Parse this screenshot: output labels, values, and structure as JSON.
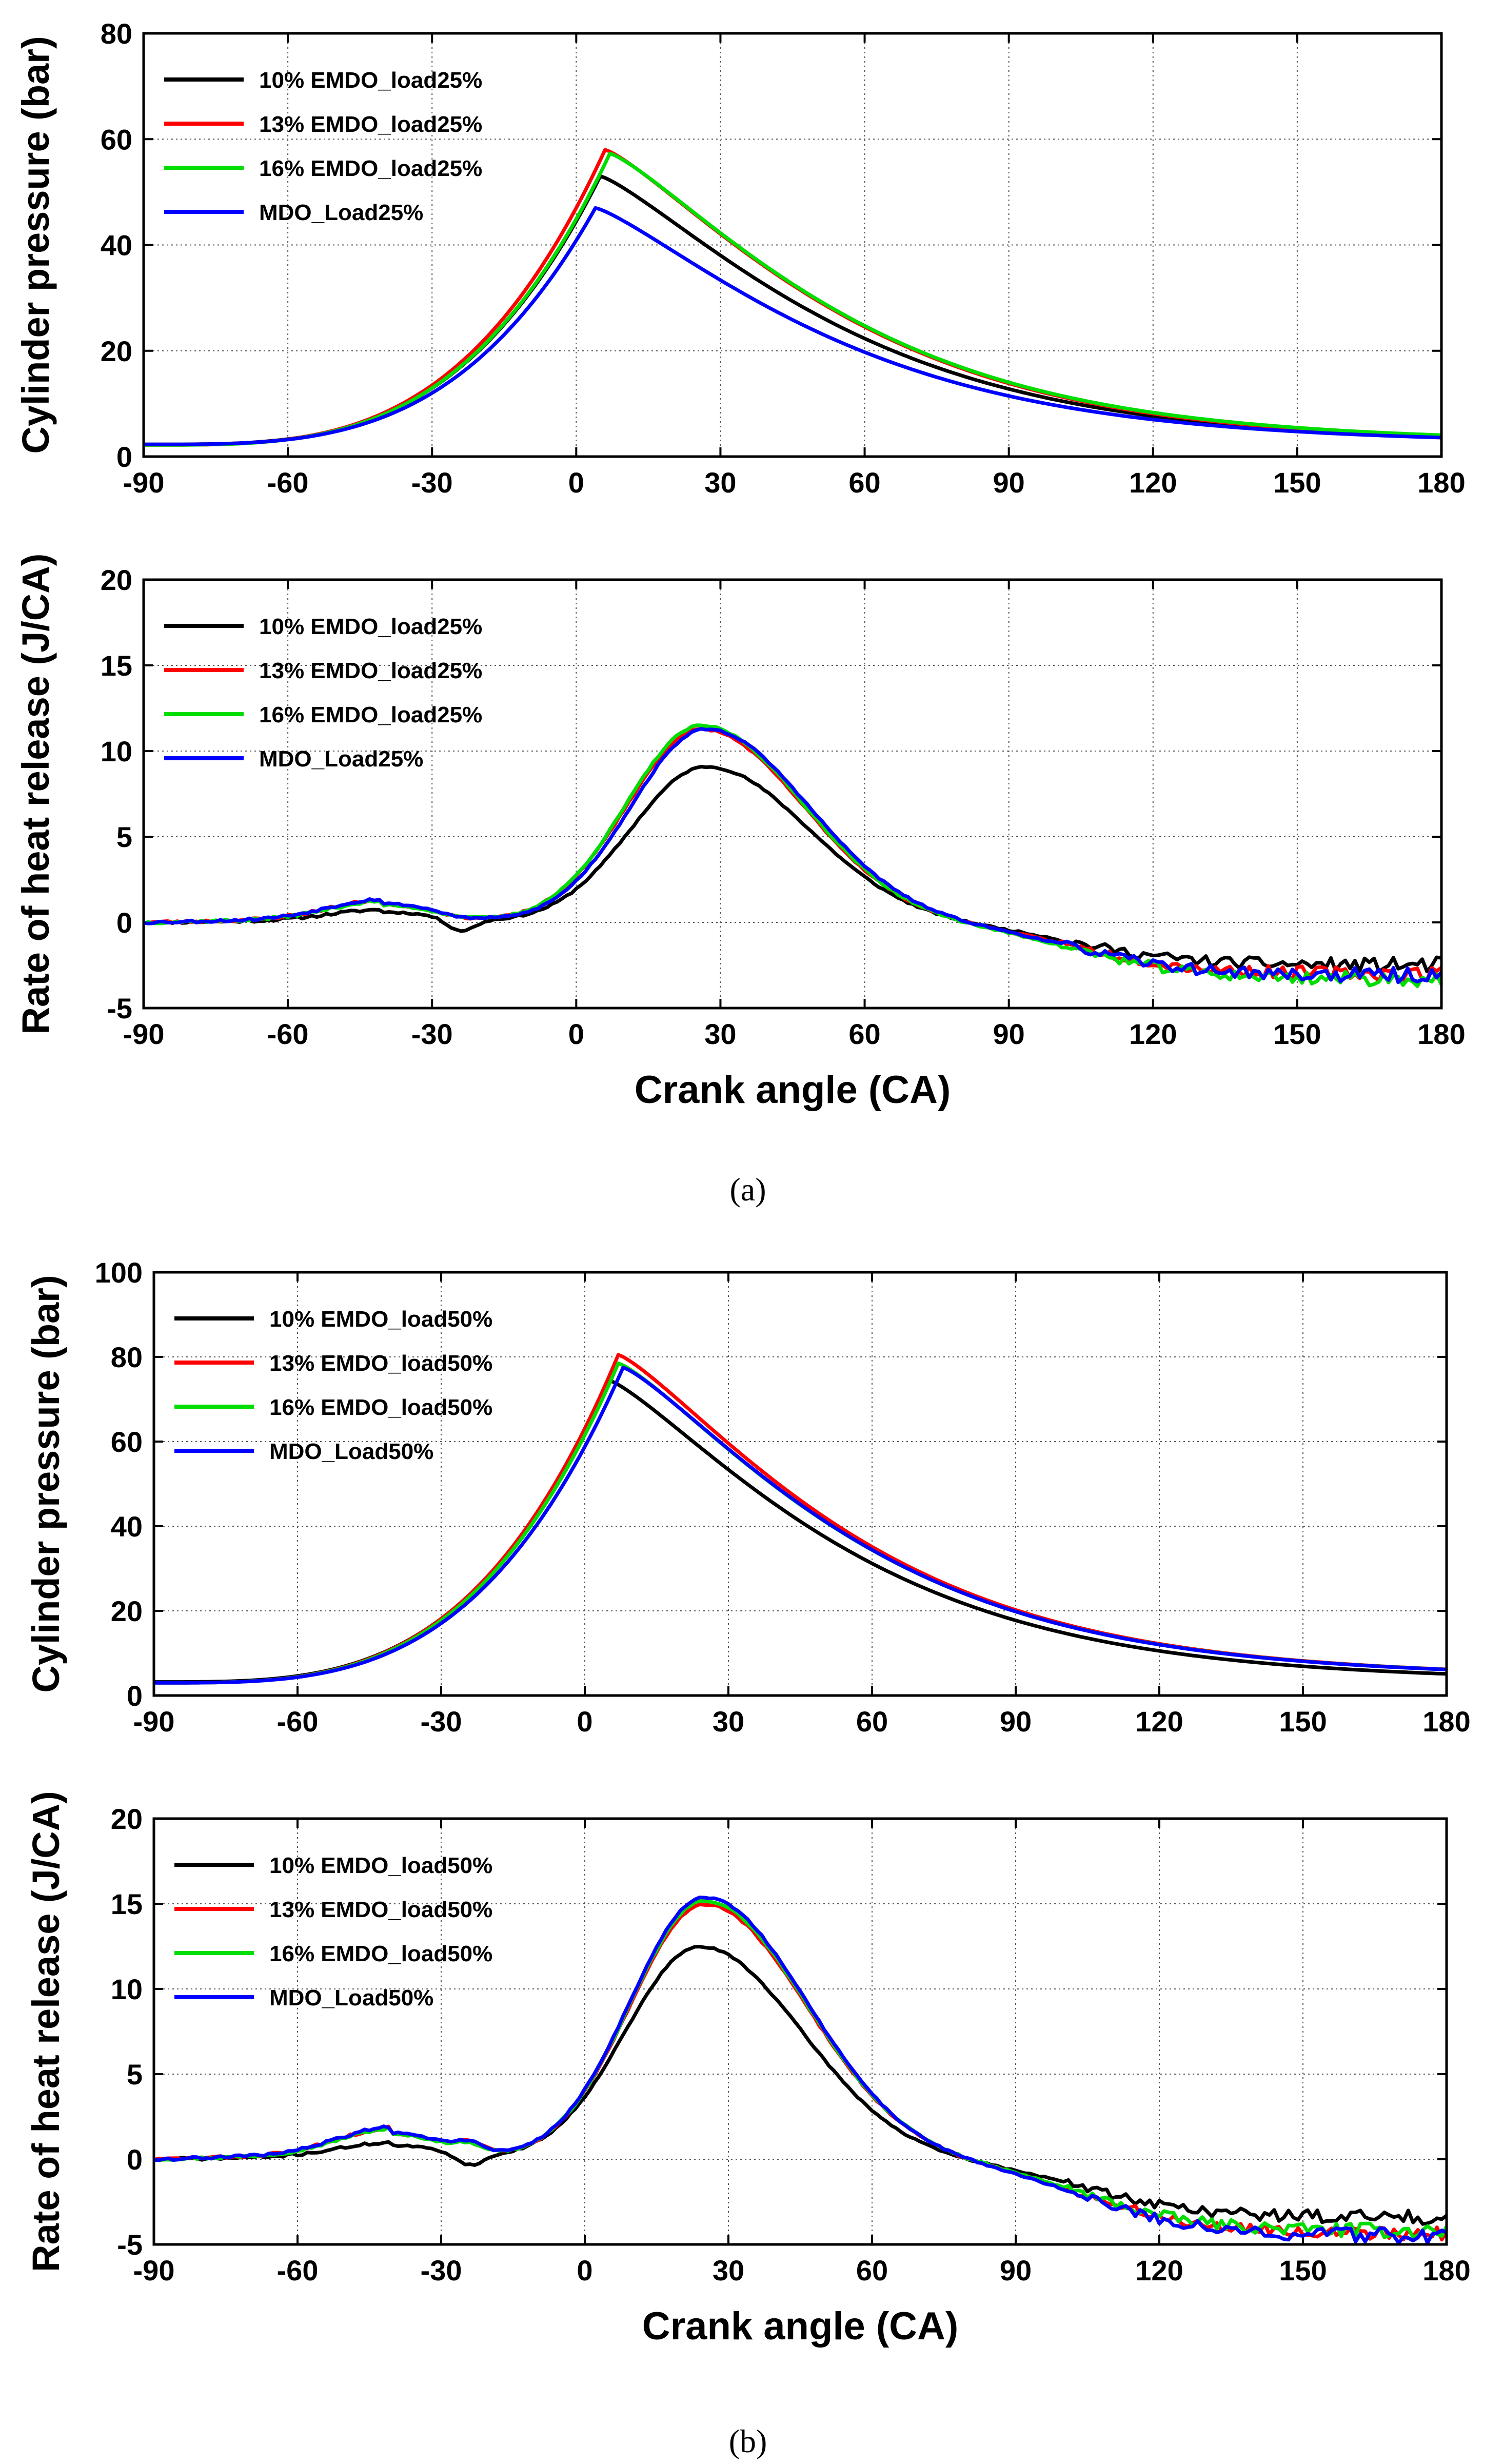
{
  "figure": {
    "subfigure_labels": [
      "(a)",
      "(b)"
    ]
  },
  "chart_data": [
    {
      "id": "a-top",
      "type": "line",
      "subfigure": "(a)",
      "title": "",
      "xlabel": "",
      "ylabel": "Cylinder pressure (bar)",
      "xlim": [
        -90,
        180
      ],
      "ylim": [
        0,
        80
      ],
      "xticks": [
        -90,
        -60,
        -30,
        0,
        30,
        60,
        90,
        120,
        150,
        180
      ],
      "yticks": [
        0,
        20,
        40,
        60,
        80
      ],
      "grid": true,
      "legend_position": "top-left",
      "series": [
        {
          "name": "10% EMDO_load25%",
          "color": "#000000",
          "kind": "pressure",
          "peak": 53,
          "peak_at": 5,
          "start": 2.3,
          "end": 3
        },
        {
          "name": "13% EMDO_load25%",
          "color": "#ff0000",
          "kind": "pressure",
          "peak": 58,
          "peak_at": 6,
          "start": 2.2,
          "end": 3
        },
        {
          "name": "16% EMDO_load25%",
          "color": "#00dd00",
          "kind": "pressure",
          "peak": 57.3,
          "peak_at": 7,
          "start": 2.2,
          "end": 3.2
        },
        {
          "name": "MDO_Load25%",
          "color": "#0000ff",
          "kind": "pressure",
          "peak": 47,
          "peak_at": 4,
          "start": 2.3,
          "end": 2.9
        }
      ]
    },
    {
      "id": "a-bottom",
      "type": "line",
      "subfigure": "(a)",
      "title": "",
      "xlabel": "Crank angle (CA)",
      "ylabel": "Rate of heat release (J/CA)",
      "xlim": [
        -90,
        180
      ],
      "ylim": [
        -5,
        20
      ],
      "xticks": [
        -90,
        -60,
        -30,
        0,
        30,
        60,
        90,
        120,
        150,
        180
      ],
      "yticks": [
        -5,
        0,
        5,
        10,
        15,
        20
      ],
      "grid": true,
      "legend_position": "top-left",
      "series": [
        {
          "name": "10% EMDO_load25%",
          "color": "#000000",
          "kind": "hrr",
          "peak": 9.1,
          "peak_at": 27,
          "pre": 0.6,
          "dip": -0.6,
          "tail": -2.5,
          "seed": 11
        },
        {
          "name": "13% EMDO_load25%",
          "color": "#ff0000",
          "kind": "hrr",
          "peak": 11.3,
          "peak_at": 26,
          "pre": 1.05,
          "dip": 0.1,
          "tail": -3.0,
          "seed": 23
        },
        {
          "name": "16% EMDO_load25%",
          "color": "#00dd00",
          "kind": "hrr",
          "peak": 11.5,
          "peak_at": 26,
          "pre": 1.0,
          "dip": 0.15,
          "tail": -3.3,
          "seed": 37
        },
        {
          "name": "MDO_Load25%",
          "color": "#0000ff",
          "kind": "hrr",
          "peak": 11.3,
          "peak_at": 27,
          "pre": 1.1,
          "dip": 0.1,
          "tail": -3.1,
          "seed": 53
        }
      ]
    },
    {
      "id": "b-top",
      "type": "line",
      "subfigure": "(b)",
      "title": "",
      "xlabel": "",
      "ylabel": "Cylinder pressure (bar)",
      "xlim": [
        -90,
        180
      ],
      "ylim": [
        0,
        100
      ],
      "xticks": [
        -90,
        -60,
        -30,
        0,
        30,
        60,
        90,
        120,
        150,
        180
      ],
      "yticks": [
        0,
        20,
        40,
        60,
        80,
        100
      ],
      "grid": true,
      "legend_position": "top-left",
      "series": [
        {
          "name": "10% EMDO_load50%",
          "color": "#000000",
          "kind": "pressure",
          "peak": 74.5,
          "peak_at": 5,
          "start": 3.2,
          "end": 4
        },
        {
          "name": "13% EMDO_load50%",
          "color": "#ff0000",
          "kind": "pressure",
          "peak": 80.5,
          "peak_at": 7,
          "start": 3,
          "end": 5
        },
        {
          "name": "16% EMDO_load50%",
          "color": "#00dd00",
          "kind": "pressure",
          "peak": 78.5,
          "peak_at": 7,
          "start": 3,
          "end": 5
        },
        {
          "name": "MDO_Load50%",
          "color": "#0000ff",
          "kind": "pressure",
          "peak": 77.5,
          "peak_at": 8,
          "start": 3,
          "end": 5
        }
      ]
    },
    {
      "id": "b-bottom",
      "type": "line",
      "subfigure": "(b)",
      "title": "",
      "xlabel": "Crank angle (CA)",
      "ylabel": "Rate of heat release (J/CA)",
      "xlim": [
        -90,
        180
      ],
      "ylim": [
        -5,
        20
      ],
      "xticks": [
        -90,
        -60,
        -30,
        0,
        30,
        60,
        90,
        120,
        150,
        180
      ],
      "yticks": [
        -5,
        0,
        5,
        10,
        15,
        20
      ],
      "grid": true,
      "legend_position": "top-left",
      "series": [
        {
          "name": "10% EMDO_load50%",
          "color": "#000000",
          "kind": "hrr",
          "peak": 12.5,
          "peak_at": 24,
          "pre": 0.8,
          "dip": -0.5,
          "tail": -3.4,
          "seed": 71
        },
        {
          "name": "13% EMDO_load50%",
          "color": "#ff0000",
          "kind": "hrr",
          "peak": 15.0,
          "peak_at": 25,
          "pre": 1.5,
          "dip": 0.8,
          "tail": -4.3,
          "seed": 83
        },
        {
          "name": "16% EMDO_load50%",
          "color": "#00dd00",
          "kind": "hrr",
          "peak": 15.2,
          "peak_at": 25,
          "pre": 1.45,
          "dip": 0.7,
          "tail": -4.2,
          "seed": 97
        },
        {
          "name": "MDO_Load50%",
          "color": "#0000ff",
          "kind": "hrr",
          "peak": 15.4,
          "peak_at": 25,
          "pre": 1.55,
          "dip": 0.8,
          "tail": -4.5,
          "seed": 109
        }
      ]
    }
  ]
}
